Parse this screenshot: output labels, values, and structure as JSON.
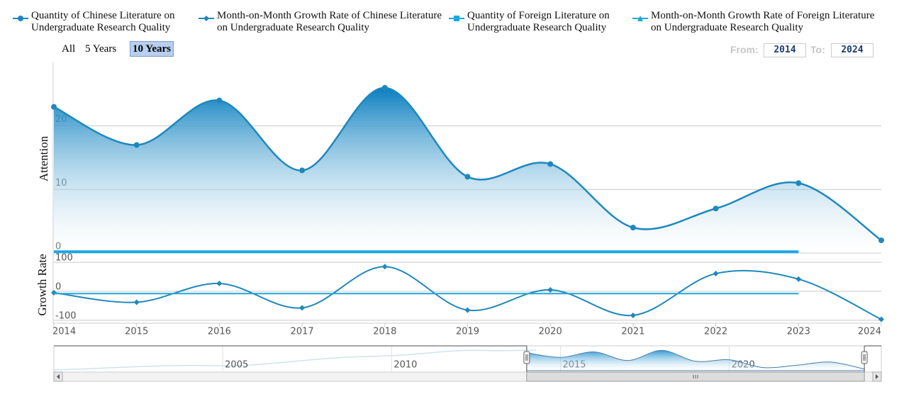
{
  "chart_data": {
    "type": "line",
    "x": [
      2014,
      2015,
      2016,
      2017,
      2018,
      2019,
      2020,
      2021,
      2022,
      2023,
      2024
    ],
    "xlim": [
      2014,
      2024
    ],
    "xticks": [
      2014,
      2015,
      2016,
      2017,
      2018,
      2019,
      2020,
      2021,
      2022,
      2023,
      2024
    ],
    "ylabel": "Attention",
    "ylim": [
      0,
      30
    ],
    "yticks": [
      0,
      10,
      20
    ],
    "y2label": "Growth Rate",
    "y2lim": [
      -110,
      110
    ],
    "y2ticks": [
      -100,
      0,
      100
    ],
    "grid": true,
    "series": [
      {
        "name": "Quantity of Chinese Literature on Undergraduate Research Quality",
        "type": "area",
        "color": "#1e88bd",
        "marker": "circle",
        "show_markers": true,
        "values": [
          23,
          17,
          24,
          13,
          26,
          12,
          14,
          4,
          7,
          11,
          2
        ]
      },
      {
        "name": "Month-on-Month Growth Rate of Chinese Literature on Undergraduate Research Quality",
        "type": "line",
        "axis": "y2",
        "color": "#2188bb",
        "marker": "diamond",
        "show_markers": true,
        "values": [
          -5,
          -38,
          27,
          -57,
          85,
          -65,
          5,
          -83,
          61,
          42,
          -97
        ]
      },
      {
        "name": "Quantity of Foreign Literature on Undergraduate Research Quality",
        "type": "line",
        "color": "#17a9e6",
        "marker": "square",
        "show_markers": false,
        "values": [
          0.2,
          0.2,
          0.2,
          0.2,
          0.2,
          0.2,
          0.2,
          0.2,
          0.2,
          0.2,
          null
        ]
      },
      {
        "name": "Month-on-Month Growth Rate of Foreign Literature on Undergraduate Research Quality",
        "type": "line",
        "axis": "y2",
        "color": "#22a6d8",
        "marker": "triangle",
        "show_markers": false,
        "values": [
          -8,
          -8,
          -8,
          -8,
          -8,
          -8,
          -8,
          -8,
          -8,
          -8,
          null
        ]
      }
    ],
    "range_selector": {
      "buttons": [
        "All",
        "5 Years",
        "10 Years"
      ],
      "selected": 2,
      "from_label": "From:",
      "from": "2014",
      "to_label": "To:",
      "to": "2024"
    },
    "navigator": {
      "xlim": [
        2000,
        2024.5
      ],
      "xticks": [
        2005,
        2010,
        2015,
        2020
      ]
    }
  }
}
